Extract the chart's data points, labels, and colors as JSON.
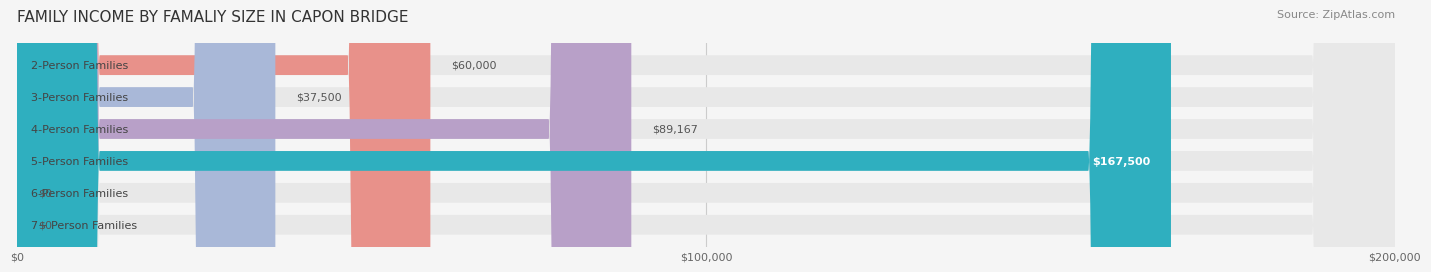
{
  "title": "FAMILY INCOME BY FAMALIY SIZE IN CAPON BRIDGE",
  "source": "Source: ZipAtlas.com",
  "categories": [
    "2-Person Families",
    "3-Person Families",
    "4-Person Families",
    "5-Person Families",
    "6-Person Families",
    "7+ Person Families"
  ],
  "values": [
    60000,
    37500,
    89167,
    167500,
    0,
    0
  ],
  "bar_colors": [
    "#E8918A",
    "#A9B8D8",
    "#B8A0C8",
    "#2FAFBF",
    "#B0B8E0",
    "#F0A0B0"
  ],
  "value_labels": [
    "$60,000",
    "$37,500",
    "$89,167",
    "$167,500",
    "$0",
    "$0"
  ],
  "value_label_inside": [
    false,
    false,
    false,
    true,
    false,
    false
  ],
  "xmax": 200000,
  "xticks": [
    0,
    100000,
    200000
  ],
  "xticklabels": [
    "$0",
    "$100,000",
    "$200,000"
  ],
  "background_color": "#f5f5f5",
  "bar_bg_color": "#e8e8e8",
  "title_fontsize": 11,
  "source_fontsize": 8,
  "label_fontsize": 8,
  "value_fontsize": 8
}
